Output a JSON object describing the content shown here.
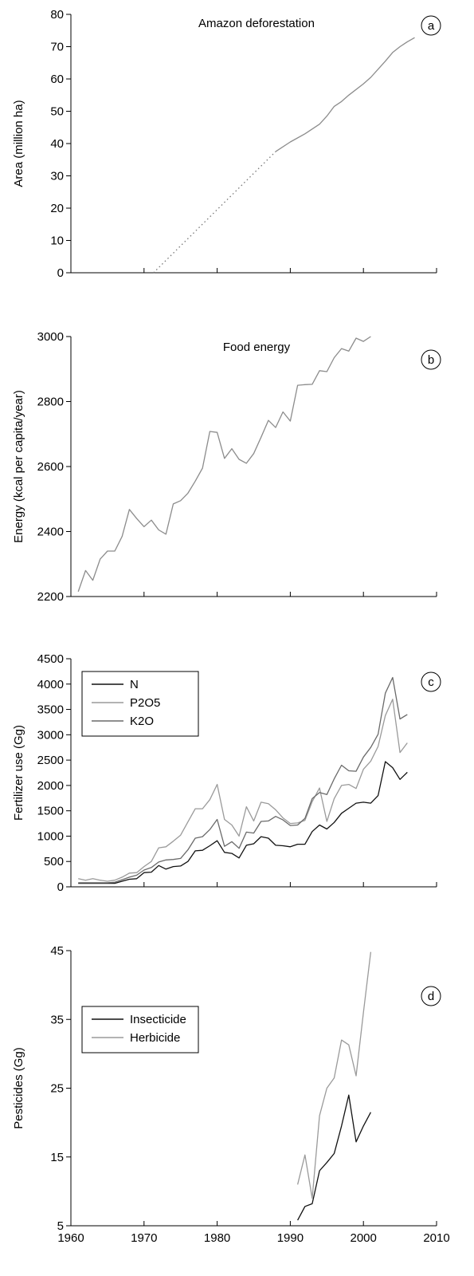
{
  "colors": {
    "black": "#111111",
    "gray": "#8c8c8c",
    "darkgray": "#6a6a6a"
  },
  "chart_data": [
    {
      "id": "a",
      "type": "line",
      "title": "Amazon deforestation",
      "panel_label": "a",
      "ylabel": "Area (million ha)",
      "xlim": [
        1960,
        2010
      ],
      "ylim": [
        0,
        80
      ],
      "yticks": [
        0,
        10,
        20,
        30,
        40,
        50,
        60,
        70,
        80
      ],
      "series": [
        {
          "style": "dotted",
          "color": "#777777",
          "points": [
            [
              1971.3,
              0
            ],
            [
              1988,
              37.5
            ]
          ]
        },
        {
          "style": "solid",
          "color": "#8c8c8c",
          "points": [
            [
              1988,
              37.5
            ],
            [
              1990,
              40.5
            ],
            [
              1992,
              43
            ],
            [
              1994,
              46
            ],
            [
              1995,
              48.5
            ],
            [
              1996,
              51.5
            ],
            [
              1997,
              53
            ],
            [
              1998,
              55
            ],
            [
              2000,
              58.5
            ],
            [
              2001,
              60.5
            ],
            [
              2002,
              63
            ],
            [
              2003,
              65.5
            ],
            [
              2004,
              68.2
            ],
            [
              2005,
              70
            ],
            [
              2006,
              71.5
            ],
            [
              2007,
              72.8
            ]
          ]
        }
      ]
    },
    {
      "id": "b",
      "type": "line",
      "title": "Food energy",
      "panel_label": "b",
      "ylabel": "Energy (kcal per capita/year)",
      "xlim": [
        1960,
        2010
      ],
      "ylim": [
        2200,
        3000
      ],
      "yticks": [
        2200,
        2400,
        2600,
        2800,
        3000
      ],
      "series": [
        {
          "style": "solid",
          "color": "#8c8c8c",
          "points": [
            [
              1961,
              2215
            ],
            [
              1962,
              2280
            ],
            [
              1963,
              2250
            ],
            [
              1964,
              2315
            ],
            [
              1965,
              2340
            ],
            [
              1966,
              2340
            ],
            [
              1967,
              2385
            ],
            [
              1968,
              2468
            ],
            [
              1969,
              2440
            ],
            [
              1970,
              2415
            ],
            [
              1971,
              2435
            ],
            [
              1972,
              2405
            ],
            [
              1973,
              2392
            ],
            [
              1974,
              2485
            ],
            [
              1975,
              2495
            ],
            [
              1976,
              2518
            ],
            [
              1977,
              2555
            ],
            [
              1978,
              2595
            ],
            [
              1979,
              2708
            ],
            [
              1980,
              2705
            ],
            [
              1981,
              2625
            ],
            [
              1982,
              2655
            ],
            [
              1983,
              2622
            ],
            [
              1984,
              2610
            ],
            [
              1985,
              2640
            ],
            [
              1986,
              2690
            ],
            [
              1987,
              2742
            ],
            [
              1988,
              2720
            ],
            [
              1989,
              2768
            ],
            [
              1990,
              2740
            ],
            [
              1991,
              2850
            ],
            [
              1992,
              2852
            ],
            [
              1993,
              2853
            ],
            [
              1994,
              2895
            ],
            [
              1995,
              2892
            ],
            [
              1996,
              2935
            ],
            [
              1997,
              2963
            ],
            [
              1998,
              2955
            ],
            [
              1999,
              2995
            ],
            [
              2000,
              2985
            ],
            [
              2001,
              3000
            ]
          ]
        }
      ]
    },
    {
      "id": "c",
      "type": "line",
      "panel_label": "c",
      "ylabel": "Fertilizer use (Gg)",
      "xlim": [
        1960,
        2010
      ],
      "ylim": [
        0,
        4500
      ],
      "yticks": [
        0,
        500,
        1000,
        1500,
        2000,
        2500,
        3000,
        3500,
        4000,
        4500
      ],
      "legend": "top-left",
      "series": [
        {
          "name": "N",
          "style": "solid",
          "color": "#111111",
          "points": [
            [
              1961,
              70
            ],
            [
              1962,
              70
            ],
            [
              1963,
              70
            ],
            [
              1964,
              70
            ],
            [
              1965,
              70
            ],
            [
              1966,
              70
            ],
            [
              1967,
              110
            ],
            [
              1968,
              150
            ],
            [
              1969,
              160
            ],
            [
              1970,
              280
            ],
            [
              1971,
              290
            ],
            [
              1972,
              420
            ],
            [
              1973,
              350
            ],
            [
              1974,
              400
            ],
            [
              1975,
              410
            ],
            [
              1976,
              500
            ],
            [
              1977,
              710
            ],
            [
              1978,
              720
            ],
            [
              1979,
              810
            ],
            [
              1980,
              910
            ],
            [
              1981,
              680
            ],
            [
              1982,
              660
            ],
            [
              1983,
              570
            ],
            [
              1984,
              820
            ],
            [
              1985,
              850
            ],
            [
              1986,
              990
            ],
            [
              1987,
              960
            ],
            [
              1988,
              820
            ],
            [
              1989,
              810
            ],
            [
              1990,
              790
            ],
            [
              1991,
              840
            ],
            [
              1992,
              840
            ],
            [
              1993,
              1090
            ],
            [
              1994,
              1220
            ],
            [
              1995,
              1140
            ],
            [
              1996,
              1270
            ],
            [
              1997,
              1450
            ],
            [
              1998,
              1550
            ],
            [
              1999,
              1650
            ],
            [
              2000,
              1670
            ],
            [
              2001,
              1650
            ],
            [
              2002,
              1800
            ],
            [
              2003,
              2470
            ],
            [
              2004,
              2350
            ],
            [
              2005,
              2120
            ],
            [
              2006,
              2260
            ]
          ]
        },
        {
          "name": "P2O5",
          "style": "solid",
          "color": "#9a9a9a",
          "points": [
            [
              1961,
              160
            ],
            [
              1962,
              130
            ],
            [
              1963,
              160
            ],
            [
              1964,
              130
            ],
            [
              1965,
              110
            ],
            [
              1966,
              130
            ],
            [
              1967,
              190
            ],
            [
              1968,
              270
            ],
            [
              1969,
              280
            ],
            [
              1970,
              400
            ],
            [
              1971,
              500
            ],
            [
              1972,
              770
            ],
            [
              1973,
              790
            ],
            [
              1974,
              900
            ],
            [
              1975,
              1020
            ],
            [
              1976,
              1280
            ],
            [
              1977,
              1540
            ],
            [
              1978,
              1540
            ],
            [
              1979,
              1720
            ],
            [
              1980,
              2020
            ],
            [
              1981,
              1330
            ],
            [
              1982,
              1220
            ],
            [
              1983,
              1000
            ],
            [
              1984,
              1580
            ],
            [
              1985,
              1300
            ],
            [
              1986,
              1670
            ],
            [
              1987,
              1640
            ],
            [
              1988,
              1520
            ],
            [
              1989,
              1360
            ],
            [
              1990,
              1250
            ],
            [
              1991,
              1260
            ],
            [
              1992,
              1310
            ],
            [
              1993,
              1680
            ],
            [
              1994,
              1950
            ],
            [
              1995,
              1290
            ],
            [
              1996,
              1740
            ],
            [
              1997,
              2000
            ],
            [
              1998,
              2020
            ],
            [
              1999,
              1940
            ],
            [
              2000,
              2320
            ],
            [
              2001,
              2480
            ],
            [
              2002,
              2770
            ],
            [
              2003,
              3380
            ],
            [
              2004,
              3700
            ],
            [
              2005,
              2650
            ],
            [
              2006,
              2840
            ]
          ]
        },
        {
          "name": "K2O",
          "style": "solid",
          "color": "#6a6a6a",
          "points": [
            [
              1961,
              80
            ],
            [
              1962,
              80
            ],
            [
              1963,
              80
            ],
            [
              1964,
              80
            ],
            [
              1965,
              80
            ],
            [
              1966,
              90
            ],
            [
              1967,
              140
            ],
            [
              1968,
              190
            ],
            [
              1969,
              230
            ],
            [
              1970,
              330
            ],
            [
              1971,
              380
            ],
            [
              1972,
              490
            ],
            [
              1973,
              530
            ],
            [
              1974,
              540
            ],
            [
              1975,
              560
            ],
            [
              1976,
              730
            ],
            [
              1977,
              960
            ],
            [
              1978,
              990
            ],
            [
              1979,
              1130
            ],
            [
              1980,
              1330
            ],
            [
              1981,
              800
            ],
            [
              1982,
              890
            ],
            [
              1983,
              760
            ],
            [
              1984,
              1080
            ],
            [
              1985,
              1060
            ],
            [
              1986,
              1290
            ],
            [
              1987,
              1300
            ],
            [
              1988,
              1390
            ],
            [
              1989,
              1320
            ],
            [
              1990,
              1210
            ],
            [
              1991,
              1220
            ],
            [
              1992,
              1350
            ],
            [
              1993,
              1740
            ],
            [
              1994,
              1860
            ],
            [
              1995,
              1820
            ],
            [
              1996,
              2130
            ],
            [
              1997,
              2400
            ],
            [
              1998,
              2290
            ],
            [
              1999,
              2280
            ],
            [
              2000,
              2560
            ],
            [
              2001,
              2750
            ],
            [
              2002,
              3010
            ],
            [
              2003,
              3820
            ],
            [
              2004,
              4130
            ],
            [
              2005,
              3310
            ],
            [
              2006,
              3400
            ]
          ]
        }
      ]
    },
    {
      "id": "d",
      "type": "line",
      "panel_label": "d",
      "ylabel": "Pesticides (Gg)",
      "xlim": [
        1960,
        2010
      ],
      "ylim": [
        5,
        45
      ],
      "yticks": [
        5,
        15,
        25,
        35,
        45
      ],
      "xticks": [
        1960,
        1970,
        1980,
        1990,
        2000,
        2010
      ],
      "legend": "top-left",
      "series": [
        {
          "name": "Insecticide",
          "style": "solid",
          "color": "#111111",
          "points": [
            [
              1991,
              5.8
            ],
            [
              1992,
              7.8
            ],
            [
              1993,
              8.2
            ],
            [
              1994,
              13
            ],
            [
              1995,
              14.2
            ],
            [
              1996,
              15.5
            ],
            [
              1997,
              19.5
            ],
            [
              1998,
              24
            ],
            [
              1999,
              17.2
            ],
            [
              2000,
              19.5
            ],
            [
              2001,
              21.5
            ]
          ]
        },
        {
          "name": "Herbicide",
          "style": "solid",
          "color": "#9a9a9a",
          "points": [
            [
              1991,
              11
            ],
            [
              1992,
              15.3
            ],
            [
              1993,
              9
            ],
            [
              1994,
              21
            ],
            [
              1995,
              25
            ],
            [
              1996,
              26.5
            ],
            [
              1997,
              32
            ],
            [
              1998,
              31.3
            ],
            [
              1999,
              26.8
            ],
            [
              2000,
              36
            ],
            [
              2001,
              44.8
            ]
          ]
        }
      ]
    }
  ]
}
